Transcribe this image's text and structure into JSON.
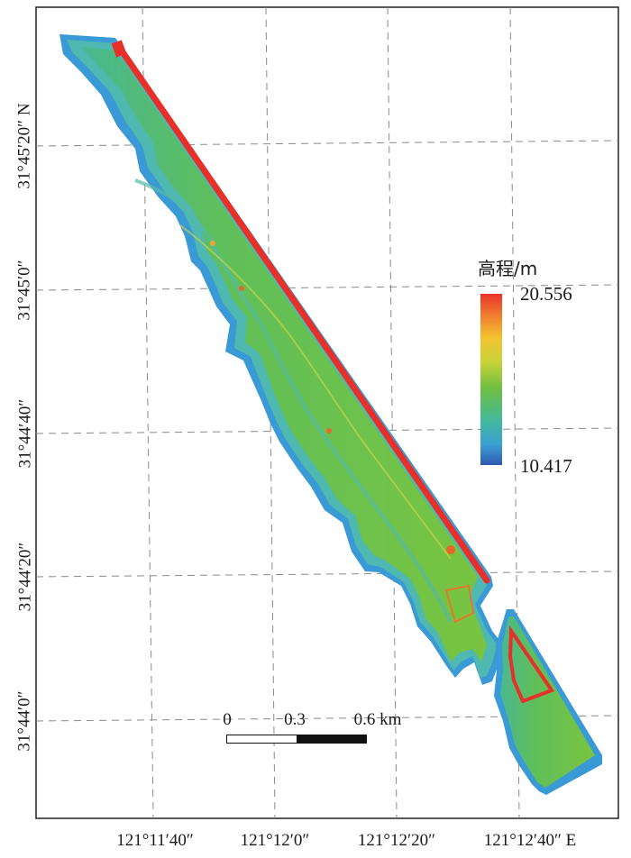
{
  "legend": {
    "title": "高程/m",
    "max": "20.556",
    "min": "10.417",
    "colors": [
      "#e8332a",
      "#f3c531",
      "#6fbf3f",
      "#3aa0d3",
      "#3058b0"
    ]
  },
  "latitude_labels": [
    "31°45′20″ N",
    "31°45′0″",
    "31°44′40″",
    "31°44′20″",
    "31°44′0″"
  ],
  "longitude_labels": [
    "121°11′40″",
    "121°12′0″",
    "121°12′20″",
    "121°12′40″ E"
  ],
  "scale_bar": {
    "labels": [
      "0",
      "0.3",
      "0.6 km"
    ]
  },
  "map": {
    "land_color": "#6fc24a",
    "shore_color": "#3a9ad6",
    "dike_color": "#e8302a",
    "grid": true
  }
}
